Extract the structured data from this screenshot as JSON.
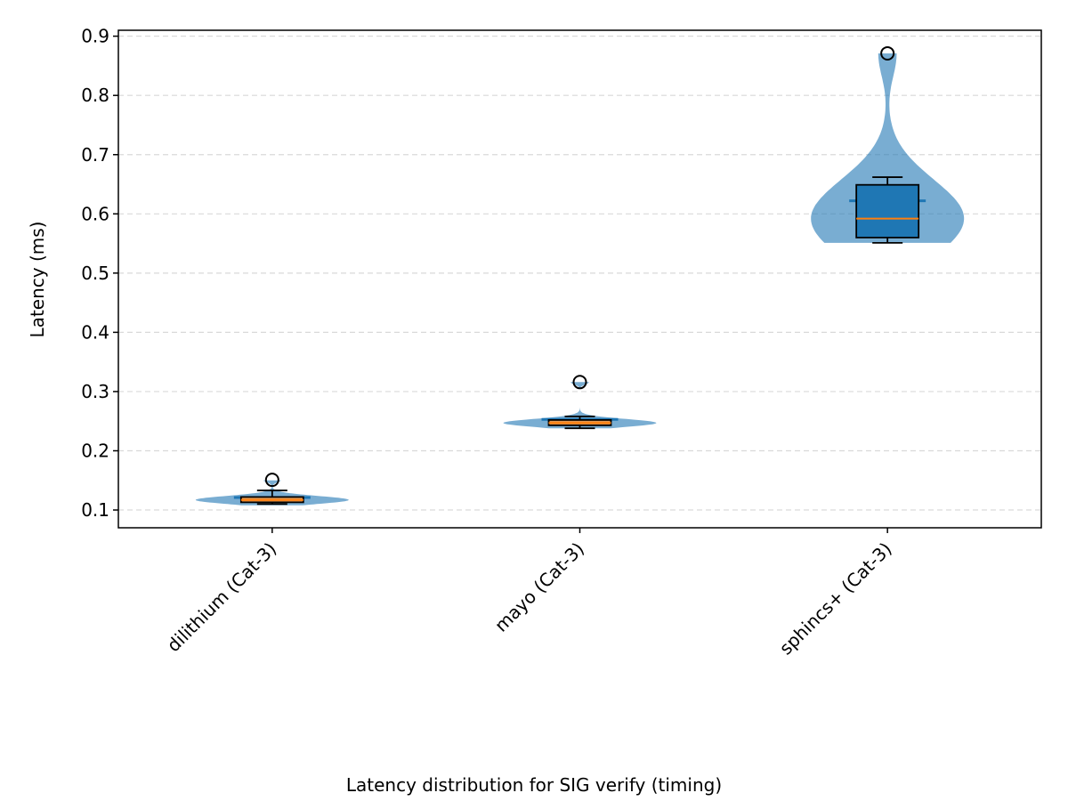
{
  "chart_data": {
    "type": "violin+box",
    "title": "",
    "caption": "Latency distribution for SIG verify (timing)",
    "xlabel": "",
    "ylabel": "Latency (ms)",
    "ylim": [
      0.07,
      0.91
    ],
    "yticks": [
      "0.1",
      "0.2",
      "0.3",
      "0.4",
      "0.5",
      "0.6",
      "0.7",
      "0.8",
      "0.9"
    ],
    "grid": "y-dashed",
    "categories": [
      "dilithium (Cat-3)",
      "mayo (Cat-3)",
      "sphincs+ (Cat-3)"
    ],
    "series": [
      {
        "category": "dilithium (Cat-3)",
        "min": 0.11,
        "q1": 0.113,
        "median": 0.117,
        "q3": 0.122,
        "whisker_high": 0.133,
        "mean": 0.121,
        "outliers": [
          0.151
        ],
        "violin_range": [
          0.108,
          0.15
        ],
        "box_fill": "#e39a53"
      },
      {
        "category": "mayo (Cat-3)",
        "min": 0.238,
        "q1": 0.243,
        "median": 0.247,
        "q3": 0.252,
        "whisker_high": 0.258,
        "mean": 0.253,
        "outliers": [
          0.316
        ],
        "violin_range": [
          0.238,
          0.316
        ],
        "box_fill": "#e39a53"
      },
      {
        "category": "sphincs+ (Cat-3)",
        "min": 0.551,
        "q1": 0.56,
        "median": 0.592,
        "q3": 0.649,
        "whisker_high": 0.662,
        "mean": 0.622,
        "outliers": [
          0.871
        ],
        "violin_range": [
          0.551,
          0.871
        ],
        "box_fill": "#1f77b4"
      }
    ],
    "colors": {
      "violin": "#1f77b4",
      "median": "#ff7f0e",
      "grid": "#d9d9d9"
    }
  }
}
